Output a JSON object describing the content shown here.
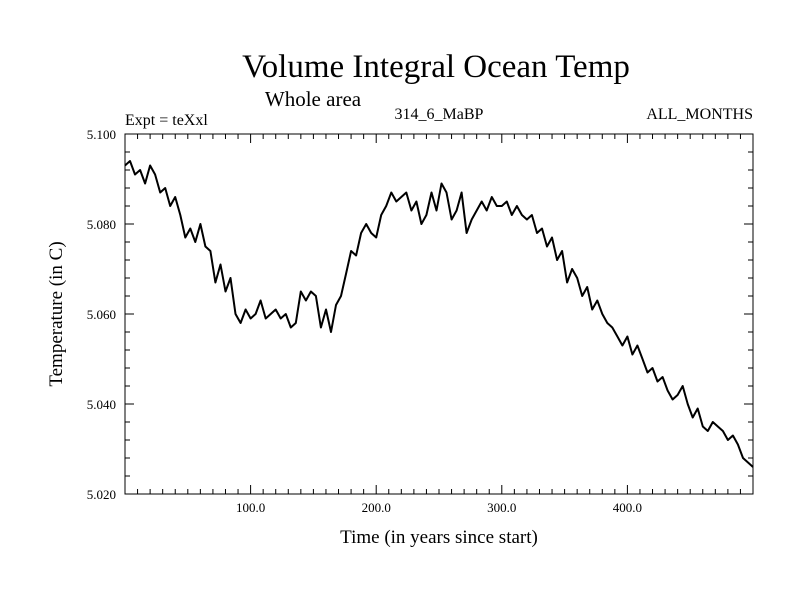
{
  "chart_data": {
    "type": "line",
    "title": "Volume Integral Ocean Temp",
    "subtitle": "Whole area",
    "header_left": "Expt = teXxl",
    "header_center": "314_6_MaBP",
    "header_right": "ALL_MONTHS",
    "xlabel": "Time (in years since start)",
    "ylabel": "Temperature (in C)",
    "xlim": [
      0,
      500
    ],
    "ylim": [
      5.02,
      5.1
    ],
    "x_ticks": [
      100,
      200,
      300,
      400
    ],
    "x_tick_labels": [
      "100.0",
      "200.0",
      "300.0",
      "400.0"
    ],
    "y_ticks": [
      5.02,
      5.04,
      5.06,
      5.08,
      5.1
    ],
    "y_tick_labels": [
      "5.020",
      "5.040",
      "5.060",
      "5.080",
      "5.100"
    ],
    "grid": false,
    "series": [
      {
        "name": "Temperature",
        "color": "#000000",
        "x": [
          0,
          4,
          8,
          12,
          16,
          20,
          24,
          28,
          32,
          36,
          40,
          44,
          48,
          52,
          56,
          60,
          64,
          68,
          72,
          76,
          80,
          84,
          88,
          92,
          96,
          100,
          104,
          108,
          112,
          116,
          120,
          124,
          128,
          132,
          136,
          140,
          144,
          148,
          152,
          156,
          160,
          164,
          168,
          172,
          176,
          180,
          184,
          188,
          192,
          196,
          200,
          204,
          208,
          212,
          216,
          220,
          224,
          228,
          232,
          236,
          240,
          244,
          248,
          252,
          256,
          260,
          264,
          268,
          272,
          276,
          280,
          284,
          288,
          292,
          296,
          300,
          304,
          308,
          312,
          316,
          320,
          324,
          328,
          332,
          336,
          340,
          344,
          348,
          352,
          356,
          360,
          364,
          368,
          372,
          376,
          380,
          384,
          388,
          392,
          396,
          400,
          404,
          408,
          412,
          416,
          420,
          424,
          428,
          432,
          436,
          440,
          444,
          448,
          452,
          456,
          460,
          464,
          468,
          472,
          476,
          480,
          484,
          488,
          492,
          496,
          500
        ],
        "values": [
          5.093,
          5.094,
          5.091,
          5.092,
          5.089,
          5.093,
          5.091,
          5.087,
          5.088,
          5.084,
          5.086,
          5.082,
          5.077,
          5.079,
          5.076,
          5.08,
          5.075,
          5.074,
          5.067,
          5.071,
          5.065,
          5.068,
          5.06,
          5.058,
          5.061,
          5.059,
          5.06,
          5.063,
          5.059,
          5.06,
          5.061,
          5.059,
          5.06,
          5.057,
          5.058,
          5.065,
          5.063,
          5.065,
          5.064,
          5.057,
          5.061,
          5.056,
          5.062,
          5.064,
          5.069,
          5.074,
          5.073,
          5.078,
          5.08,
          5.078,
          5.077,
          5.082,
          5.084,
          5.087,
          5.085,
          5.086,
          5.087,
          5.083,
          5.085,
          5.08,
          5.082,
          5.087,
          5.083,
          5.089,
          5.087,
          5.081,
          5.083,
          5.087,
          5.078,
          5.081,
          5.083,
          5.085,
          5.083,
          5.086,
          5.084,
          5.084,
          5.085,
          5.082,
          5.084,
          5.082,
          5.081,
          5.082,
          5.078,
          5.079,
          5.075,
          5.077,
          5.072,
          5.074,
          5.067,
          5.07,
          5.068,
          5.064,
          5.066,
          5.061,
          5.063,
          5.06,
          5.058,
          5.057,
          5.055,
          5.053,
          5.055,
          5.051,
          5.053,
          5.05,
          5.047,
          5.048,
          5.045,
          5.046,
          5.043,
          5.041,
          5.042,
          5.044,
          5.04,
          5.037,
          5.039,
          5.035,
          5.034,
          5.036,
          5.035,
          5.034,
          5.032,
          5.033,
          5.031,
          5.028,
          5.027,
          5.026
        ]
      }
    ]
  }
}
